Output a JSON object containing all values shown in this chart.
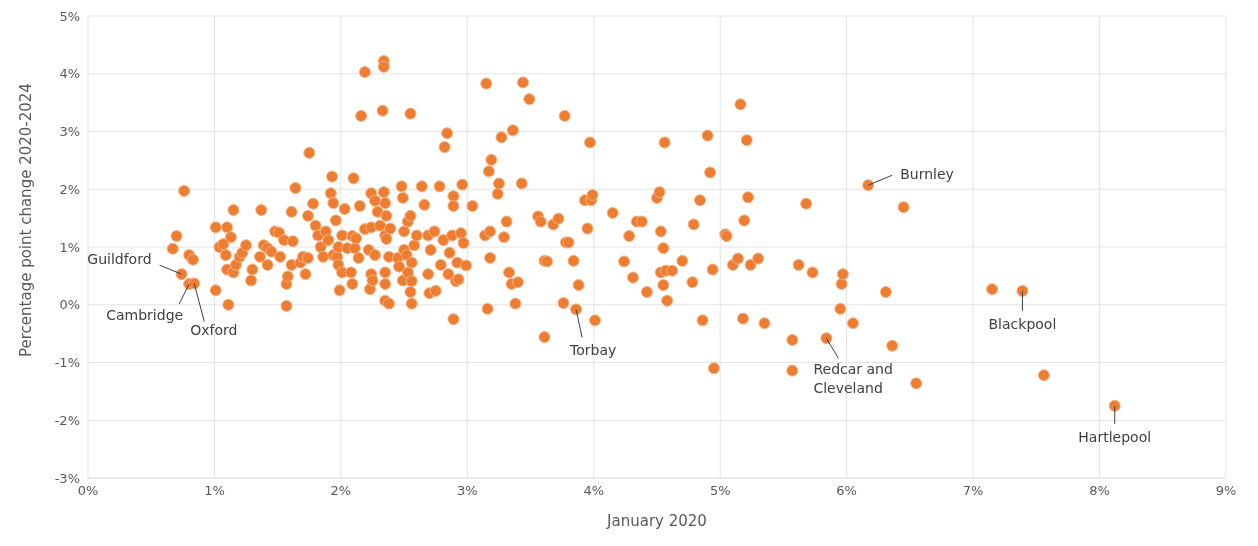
{
  "chart_data": {
    "type": "scatter",
    "xlabel": "January 2020",
    "ylabel": "Percentage point change  2020-2024",
    "marker": "circle",
    "grid": true,
    "xlim": [
      0,
      9
    ],
    "ylim": [
      -3,
      5
    ],
    "xticks": [
      {
        "value": 0,
        "label": "0%"
      },
      {
        "value": 1,
        "label": "1%"
      },
      {
        "value": 2,
        "label": "2%"
      },
      {
        "value": 3,
        "label": "3%"
      },
      {
        "value": 4,
        "label": "4%"
      },
      {
        "value": 5,
        "label": "5%"
      },
      {
        "value": 6,
        "label": "6%"
      },
      {
        "value": 7,
        "label": "7%"
      },
      {
        "value": 8,
        "label": "8%"
      },
      {
        "value": 9,
        "label": "9%"
      }
    ],
    "yticks": [
      {
        "value": -3,
        "label": "-3%"
      },
      {
        "value": -2,
        "label": "-2%"
      },
      {
        "value": -1,
        "label": "-1%"
      },
      {
        "value": 0,
        "label": "0%"
      },
      {
        "value": 1,
        "label": "1%"
      },
      {
        "value": 2,
        "label": "2%"
      },
      {
        "value": 3,
        "label": "3%"
      },
      {
        "value": 4,
        "label": "4%"
      },
      {
        "value": 5,
        "label": "5%"
      }
    ],
    "series": [
      {
        "color": "#ed7d31",
        "x": [
          0.67,
          0.7,
          0.76,
          0.74,
          0.8,
          0.83,
          0.8,
          0.84,
          1.01,
          1.01,
          1.04,
          1.07,
          1.1,
          1.11,
          1.1,
          1.15,
          1.13,
          1.09,
          1.15,
          1.17,
          1.2,
          1.22,
          1.25,
          1.29,
          1.3,
          1.36,
          1.37,
          1.39,
          1.42,
          1.42,
          1.45,
          1.48,
          1.51,
          1.52,
          1.55,
          1.57,
          1.57,
          1.58,
          1.61,
          1.62,
          1.61,
          1.64,
          1.68,
          1.7,
          1.72,
          1.74,
          1.74,
          1.75,
          1.78,
          1.8,
          1.82,
          1.84,
          1.86,
          1.88,
          1.9,
          1.92,
          1.93,
          1.94,
          1.94,
          1.96,
          1.97,
          1.98,
          1.98,
          1.99,
          2.01,
          2.01,
          2.03,
          2.05,
          2.08,
          2.09,
          2.09,
          2.1,
          2.11,
          2.12,
          2.14,
          2.15,
          2.16,
          2.19,
          2.19,
          2.22,
          2.23,
          2.24,
          2.24,
          2.24,
          2.25,
          2.27,
          2.27,
          2.29,
          2.31,
          2.33,
          2.34,
          2.34,
          2.34,
          2.35,
          2.35,
          2.35,
          2.35,
          2.35,
          2.36,
          2.36,
          2.38,
          2.38,
          2.39,
          2.45,
          2.46,
          2.48,
          2.49,
          2.49,
          2.5,
          2.5,
          2.52,
          2.53,
          2.53,
          2.55,
          2.55,
          2.55,
          2.56,
          2.56,
          2.56,
          2.58,
          2.6,
          2.64,
          2.66,
          2.69,
          2.69,
          2.7,
          2.71,
          2.74,
          2.75,
          2.78,
          2.79,
          2.81,
          2.82,
          2.84,
          2.85,
          2.86,
          2.88,
          2.89,
          2.89,
          2.89,
          2.91,
          2.92,
          2.93,
          2.95,
          2.96,
          2.97,
          2.99,
          3.04,
          3.15,
          3.14,
          3.16,
          3.17,
          3.18,
          3.18,
          3.19,
          3.24,
          3.25,
          3.27,
          3.29,
          3.31,
          3.33,
          3.35,
          3.36,
          3.38,
          3.4,
          3.43,
          3.44,
          3.49,
          3.56,
          3.58,
          3.61,
          3.61,
          3.63,
          3.68,
          3.72,
          3.76,
          3.77,
          3.78,
          3.8,
          3.84,
          3.86,
          3.88,
          3.93,
          3.95,
          3.97,
          3.98,
          3.99,
          4.01,
          4.15,
          4.24,
          4.28,
          4.31,
          4.34,
          4.38,
          4.42,
          4.5,
          4.52,
          4.53,
          4.53,
          4.55,
          4.55,
          4.56,
          4.57,
          4.58,
          4.62,
          4.7,
          4.78,
          4.79,
          4.84,
          4.86,
          4.9,
          4.92,
          4.94,
          4.95,
          5.04,
          5.05,
          5.1,
          5.14,
          5.16,
          5.18,
          5.21,
          5.19,
          5.22,
          5.24,
          5.3,
          5.35,
          5.57,
          5.57,
          5.62,
          5.68,
          5.73,
          5.84,
          5.95,
          5.96,
          5.97,
          6.05,
          6.17,
          6.31,
          6.36,
          6.45,
          6.55,
          7.15,
          7.39,
          7.56,
          8.12
        ],
        "values": [
          0.97,
          1.19,
          1.97,
          0.53,
          0.86,
          0.78,
          0.36,
          0.37,
          0.25,
          1.34,
          1.0,
          1.05,
          0.61,
          0.0,
          1.34,
          1.64,
          1.17,
          0.86,
          0.56,
          0.69,
          0.83,
          0.9,
          1.03,
          0.42,
          0.61,
          0.83,
          1.64,
          1.03,
          0.98,
          0.69,
          0.92,
          1.27,
          1.25,
          0.83,
          1.12,
          0.36,
          -0.02,
          0.49,
          0.69,
          1.1,
          1.61,
          2.02,
          0.73,
          0.83,
          0.53,
          1.54,
          0.81,
          2.63,
          1.75,
          1.37,
          1.2,
          1.0,
          0.83,
          1.27,
          1.12,
          1.93,
          2.22,
          1.76,
          0.86,
          1.46,
          0.83,
          0.69,
          1.0,
          0.25,
          1.2,
          0.56,
          1.66,
          0.98,
          0.56,
          1.19,
          0.36,
          2.19,
          0.98,
          1.15,
          0.81,
          1.71,
          3.27,
          1.31,
          4.03,
          0.95,
          0.27,
          1.93,
          1.34,
          0.53,
          0.42,
          1.8,
          0.86,
          1.61,
          1.37,
          3.36,
          1.95,
          4.22,
          4.12,
          1.76,
          1.2,
          0.56,
          0.36,
          0.07,
          1.54,
          1.14,
          0.02,
          0.83,
          1.32,
          0.81,
          0.66,
          2.05,
          0.42,
          1.85,
          1.27,
          0.95,
          0.86,
          0.56,
          1.44,
          1.54,
          3.31,
          0.22,
          0.02,
          0.73,
          0.41,
          1.03,
          1.2,
          2.05,
          1.73,
          0.53,
          1.2,
          0.2,
          0.95,
          1.27,
          0.24,
          2.05,
          0.69,
          1.12,
          2.73,
          2.97,
          0.53,
          0.9,
          1.2,
          1.88,
          1.71,
          -0.25,
          0.41,
          0.73,
          0.44,
          1.24,
          2.08,
          1.07,
          0.68,
          1.71,
          3.83,
          1.2,
          -0.07,
          2.31,
          1.27,
          0.81,
          2.51,
          1.92,
          2.1,
          2.9,
          1.17,
          1.44,
          0.56,
          0.36,
          3.02,
          0.02,
          0.39,
          2.1,
          3.85,
          3.56,
          1.53,
          1.44,
          -0.56,
          0.76,
          0.75,
          1.39,
          1.49,
          0.03,
          3.27,
          1.08,
          1.08,
          0.76,
          -0.08,
          0.34,
          1.81,
          1.32,
          2.81,
          1.81,
          1.9,
          -0.27,
          1.59,
          0.75,
          1.19,
          0.47,
          1.44,
          1.44,
          0.22,
          1.85,
          1.95,
          1.27,
          0.56,
          0.98,
          0.34,
          2.81,
          0.59,
          0.07,
          0.59,
          0.76,
          0.39,
          1.39,
          1.81,
          -0.27,
          2.93,
          2.29,
          0.61,
          -1.1,
          1.22,
          1.19,
          0.69,
          0.8,
          3.47,
          -0.24,
          2.85,
          1.46,
          1.86,
          0.69,
          0.8,
          -0.32,
          -0.61,
          -1.14,
          0.69,
          1.75,
          0.56,
          -0.58,
          -0.07,
          0.36,
          0.53,
          -0.32,
          2.07,
          0.22,
          -0.71,
          1.69,
          -1.36,
          0.27,
          0.24,
          -1.22,
          -1.75
        ]
      }
    ],
    "annotations": [
      {
        "text": "Guildford",
        "x": 0.74,
        "y": 0.53
      },
      {
        "text": "Cambridge",
        "x": 0.8,
        "y": 0.36
      },
      {
        "text": "Oxford",
        "x": 0.84,
        "y": 0.37
      },
      {
        "text": "Torbay",
        "x": 3.86,
        "y": -0.08
      },
      {
        "text": "Burnley",
        "x": 6.17,
        "y": 2.07
      },
      {
        "text": "Blackpool",
        "x": 7.39,
        "y": 0.24
      },
      {
        "text": "Redcar and Cleveland",
        "x": 5.84,
        "y": -0.58
      },
      {
        "text": "Hartlepool",
        "x": 8.12,
        "y": -1.75
      }
    ]
  }
}
